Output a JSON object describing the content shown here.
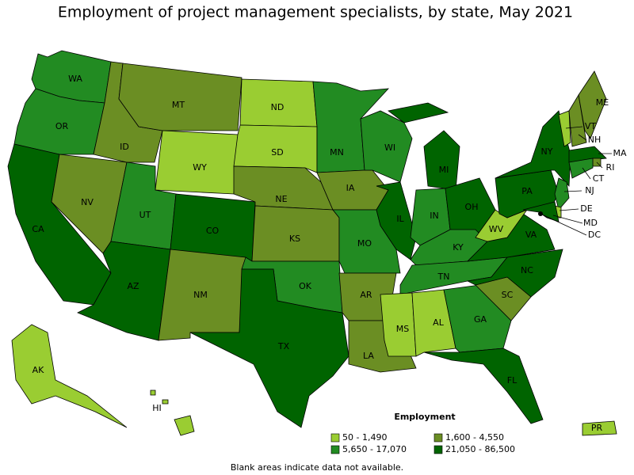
{
  "title": "Employment of project management specialists, by state, May 2021",
  "legend": {
    "title": "Employment",
    "items": [
      {
        "label": "50 - 1,490",
        "color": "#9acd32"
      },
      {
        "label": "1,600 - 4,550",
        "color": "#6b8e23"
      },
      {
        "label": "5,650 - 17,070",
        "color": "#228b22"
      },
      {
        "label": "21,050 - 86,500",
        "color": "#006400"
      }
    ]
  },
  "states": [
    {
      "abbr": "WA",
      "class": 2
    },
    {
      "abbr": "OR",
      "class": 2
    },
    {
      "abbr": "CA",
      "class": 3
    },
    {
      "abbr": "NV",
      "class": 1
    },
    {
      "abbr": "ID",
      "class": 1
    },
    {
      "abbr": "MT",
      "class": 1
    },
    {
      "abbr": "WY",
      "class": 0
    },
    {
      "abbr": "UT",
      "class": 2
    },
    {
      "abbr": "CO",
      "class": 3
    },
    {
      "abbr": "AZ",
      "class": 3
    },
    {
      "abbr": "NM",
      "class": 1
    },
    {
      "abbr": "ND",
      "class": 0
    },
    {
      "abbr": "SD",
      "class": 0
    },
    {
      "abbr": "NE",
      "class": 1
    },
    {
      "abbr": "KS",
      "class": 1
    },
    {
      "abbr": "OK",
      "class": 2
    },
    {
      "abbr": "TX",
      "class": 3
    },
    {
      "abbr": "MN",
      "class": 2
    },
    {
      "abbr": "IA",
      "class": 1
    },
    {
      "abbr": "MO",
      "class": 2
    },
    {
      "abbr": "AR",
      "class": 1
    },
    {
      "abbr": "LA",
      "class": 1
    },
    {
      "abbr": "WI",
      "class": 2
    },
    {
      "abbr": "IL",
      "class": 3
    },
    {
      "abbr": "MI",
      "class": 3
    },
    {
      "abbr": "IN",
      "class": 2
    },
    {
      "abbr": "OH",
      "class": 3
    },
    {
      "abbr": "KY",
      "class": 2
    },
    {
      "abbr": "TN",
      "class": 2
    },
    {
      "abbr": "MS",
      "class": 0
    },
    {
      "abbr": "AL",
      "class": 0
    },
    {
      "abbr": "GA",
      "class": 2
    },
    {
      "abbr": "FL",
      "class": 3
    },
    {
      "abbr": "SC",
      "class": 1
    },
    {
      "abbr": "NC",
      "class": 3
    },
    {
      "abbr": "VA",
      "class": 3
    },
    {
      "abbr": "WV",
      "class": 0
    },
    {
      "abbr": "PA",
      "class": 3
    },
    {
      "abbr": "NY",
      "class": 3
    },
    {
      "abbr": "VT",
      "class": 0
    },
    {
      "abbr": "NH",
      "class": 1
    },
    {
      "abbr": "ME",
      "class": 1
    },
    {
      "abbr": "MA",
      "class": 3
    },
    {
      "abbr": "RI",
      "class": 1
    },
    {
      "abbr": "CT",
      "class": 2
    },
    {
      "abbr": "NJ",
      "class": 2
    },
    {
      "abbr": "DE",
      "class": 0
    },
    {
      "abbr": "MD",
      "class": 3
    },
    {
      "abbr": "DC",
      "class": 3
    },
    {
      "abbr": "AK",
      "class": 0
    },
    {
      "abbr": "HI",
      "class": 0
    },
    {
      "abbr": "PR",
      "class": 0
    }
  ],
  "footnote": "Blank areas indicate data not available."
}
